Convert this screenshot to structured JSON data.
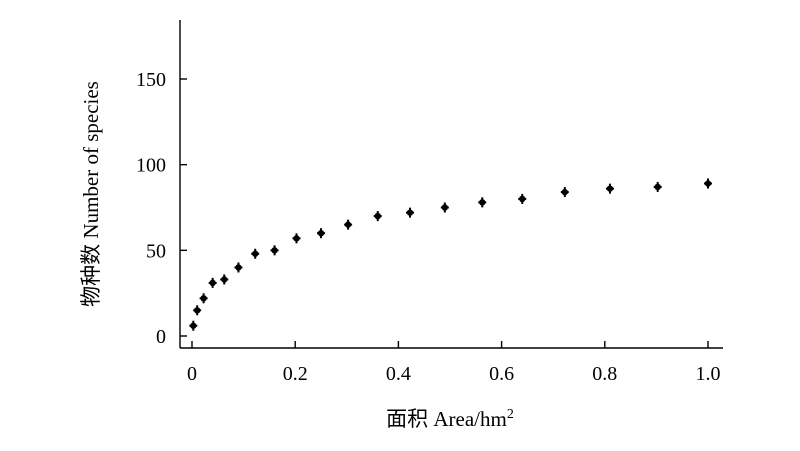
{
  "chart_data": {
    "type": "scatter",
    "xlabel": "面积 Area/hm",
    "xlabel_superscript": "2",
    "ylabel": "物种数 Number of species",
    "xlim": [
      0,
      1.0
    ],
    "ylim": [
      0,
      180
    ],
    "xticks": [
      "0",
      "0.2",
      "0.4",
      "0.6",
      "0.8",
      "1.0"
    ],
    "xtick_values": [
      0,
      0.2,
      0.4,
      0.6,
      0.8,
      1.0
    ],
    "yticks": [
      "0",
      "50",
      "100",
      "150"
    ],
    "ytick_values": [
      0,
      50,
      100,
      150
    ],
    "grid": false,
    "marker": "plus",
    "marker_color": "#000000",
    "series": [
      {
        "x": [
          0.0025,
          0.01,
          0.0225,
          0.04,
          0.0625,
          0.09,
          0.1225,
          0.16,
          0.2025,
          0.25,
          0.3025,
          0.36,
          0.4225,
          0.49,
          0.5625,
          0.64,
          0.7225,
          0.81,
          0.9025,
          1.0
        ],
        "y": [
          6,
          15,
          22,
          31,
          33,
          40,
          48,
          50,
          57,
          60,
          65,
          70,
          72,
          75,
          78,
          80,
          84,
          86,
          87,
          89
        ]
      }
    ]
  }
}
